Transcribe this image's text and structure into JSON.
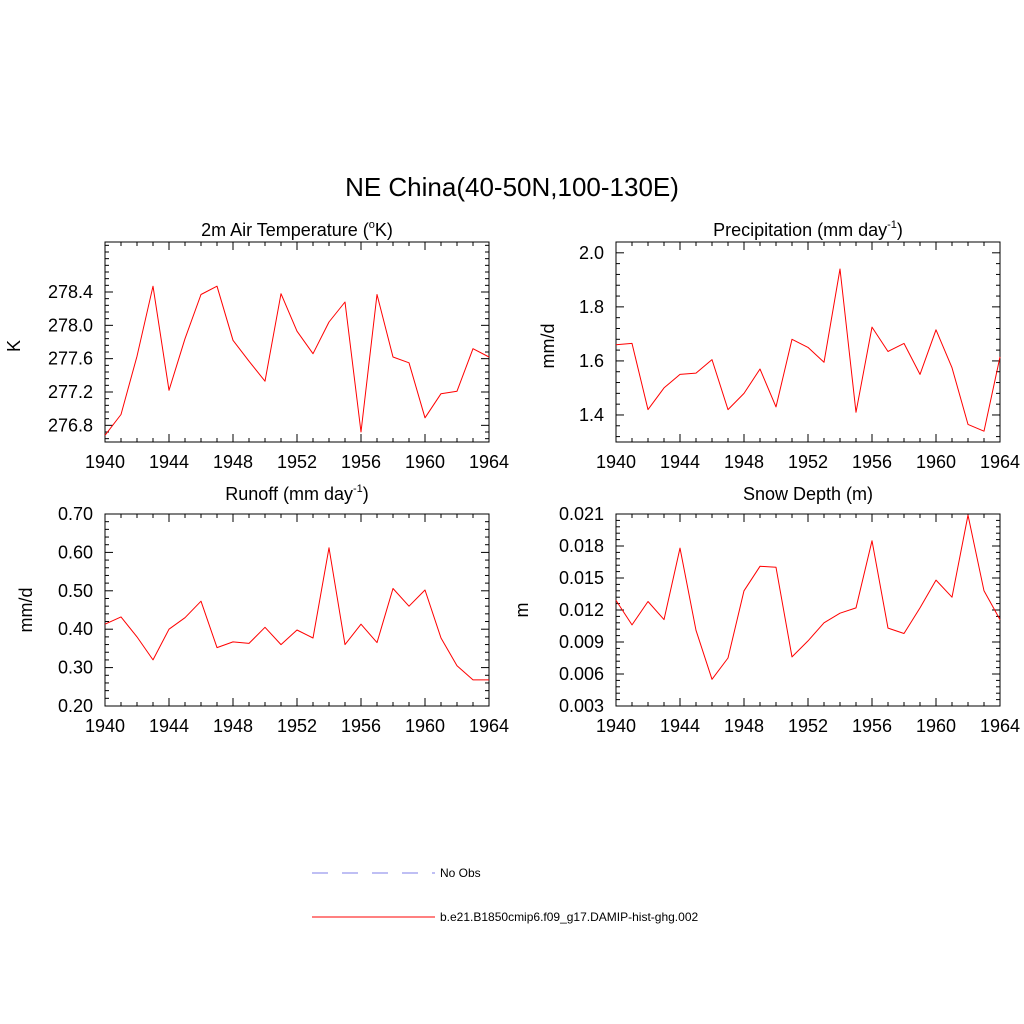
{
  "figure": {
    "title": "NE China(40-50N,100-130E)"
  },
  "legend": {
    "items": [
      {
        "label": "No Obs",
        "color": "#9999ee",
        "dashed": true
      },
      {
        "label": "b.e21.B1850cmip6.f09_g17.DAMIP-hist-ghg.002",
        "color": "#ff0000",
        "dashed": false
      }
    ]
  },
  "chart_data": [
    {
      "type": "line",
      "title": "2m Air Temperature (°K)",
      "title_main": "2m Air Temperature (",
      "title_sup": "o",
      "title_tail": "K)",
      "xlabel": "",
      "ylabel": "K",
      "xlim": [
        1940,
        1964
      ],
      "ylim": [
        276.6,
        279.0
      ],
      "xticks": [
        1940,
        1944,
        1948,
        1952,
        1956,
        1960,
        1964
      ],
      "yticks": [
        "276.8",
        "277.2",
        "277.6",
        "278.0",
        "278.4"
      ],
      "ytick_values": [
        276.8,
        277.2,
        277.6,
        278.0,
        278.4
      ],
      "series": [
        {
          "color": "#ff0000",
          "x": [
            1940,
            1941,
            1942,
            1943,
            1944,
            1945,
            1946,
            1947,
            1948,
            1949,
            1950,
            1951,
            1952,
            1953,
            1954,
            1955,
            1956,
            1957,
            1958,
            1959,
            1960,
            1961,
            1962,
            1963,
            1964
          ],
          "values": [
            276.68,
            276.93,
            277.63,
            278.47,
            277.22,
            277.84,
            278.37,
            278.47,
            277.82,
            277.57,
            277.33,
            278.38,
            277.93,
            277.66,
            278.04,
            278.28,
            276.72,
            278.37,
            277.62,
            277.55,
            276.89,
            277.18,
            277.21,
            277.72,
            277.62
          ]
        }
      ]
    },
    {
      "type": "line",
      "title": "Precipitation (mm day-1)",
      "title_main": "Precipitation (mm day",
      "title_sup": "-1",
      "title_tail": ")",
      "xlabel": "",
      "ylabel": "mm/d",
      "xlim": [
        1940,
        1964
      ],
      "ylim": [
        1.3,
        2.04
      ],
      "xticks": [
        1940,
        1944,
        1948,
        1952,
        1956,
        1960,
        1964
      ],
      "yticks": [
        "1.4",
        "1.6",
        "1.8",
        "2.0"
      ],
      "ytick_values": [
        1.4,
        1.6,
        1.8,
        2.0
      ],
      "series": [
        {
          "color": "#ff0000",
          "x": [
            1940,
            1941,
            1942,
            1943,
            1944,
            1945,
            1946,
            1947,
            1948,
            1949,
            1950,
            1951,
            1952,
            1953,
            1954,
            1955,
            1956,
            1957,
            1958,
            1959,
            1960,
            1961,
            1962,
            1963,
            1964
          ],
          "values": [
            1.66,
            1.665,
            1.42,
            1.5,
            1.55,
            1.555,
            1.605,
            1.42,
            1.48,
            1.57,
            1.43,
            1.68,
            1.65,
            1.595,
            1.94,
            1.41,
            1.725,
            1.635,
            1.665,
            1.55,
            1.715,
            1.575,
            1.365,
            1.34,
            1.615
          ]
        }
      ]
    },
    {
      "type": "line",
      "title": "Runoff (mm day-1)",
      "title_main": "Runoff (mm day",
      "title_sup": "-1",
      "title_tail": ")",
      "xlabel": "",
      "ylabel": "mm/d",
      "xlim": [
        1940,
        1964
      ],
      "ylim": [
        0.2,
        0.7
      ],
      "xticks": [
        1940,
        1944,
        1948,
        1952,
        1956,
        1960,
        1964
      ],
      "yticks": [
        "0.20",
        "0.30",
        "0.40",
        "0.50",
        "0.60",
        "0.70"
      ],
      "ytick_values": [
        0.2,
        0.3,
        0.4,
        0.5,
        0.6,
        0.7
      ],
      "series": [
        {
          "color": "#ff0000",
          "x": [
            1940,
            1941,
            1942,
            1943,
            1944,
            1945,
            1946,
            1947,
            1948,
            1949,
            1950,
            1951,
            1952,
            1953,
            1954,
            1955,
            1956,
            1957,
            1958,
            1959,
            1960,
            1961,
            1962,
            1963,
            1964
          ],
          "values": [
            0.413,
            0.432,
            0.38,
            0.32,
            0.4,
            0.43,
            0.473,
            0.352,
            0.367,
            0.363,
            0.405,
            0.36,
            0.398,
            0.377,
            0.612,
            0.36,
            0.413,
            0.365,
            0.506,
            0.46,
            0.502,
            0.377,
            0.305,
            0.268,
            0.268
          ]
        }
      ]
    },
    {
      "type": "line",
      "title": "Snow Depth (m)",
      "title_main": "Snow Depth (m)",
      "title_sup": "",
      "title_tail": "",
      "xlabel": "",
      "ylabel": "m",
      "xlim": [
        1940,
        1964
      ],
      "ylim": [
        0.003,
        0.021
      ],
      "xticks": [
        1940,
        1944,
        1948,
        1952,
        1956,
        1960,
        1964
      ],
      "yticks": [
        "0.003",
        "0.006",
        "0.009",
        "0.012",
        "0.015",
        "0.018",
        "0.021"
      ],
      "ytick_values": [
        0.003,
        0.006,
        0.009,
        0.012,
        0.015,
        0.018,
        0.021
      ],
      "series": [
        {
          "color": "#ff0000",
          "x": [
            1940,
            1941,
            1942,
            1943,
            1944,
            1945,
            1946,
            1947,
            1948,
            1949,
            1950,
            1951,
            1952,
            1953,
            1954,
            1955,
            1956,
            1957,
            1958,
            1959,
            1960,
            1961,
            1962,
            1963,
            1964
          ],
          "values": [
            0.0129,
            0.0106,
            0.0128,
            0.0111,
            0.0178,
            0.0101,
            0.0055,
            0.0075,
            0.0138,
            0.0161,
            0.016,
            0.0076,
            0.0091,
            0.0108,
            0.0117,
            0.0122,
            0.0185,
            0.0103,
            0.0098,
            0.0122,
            0.0148,
            0.0132,
            0.0209,
            0.0138,
            0.0111
          ]
        }
      ]
    }
  ]
}
